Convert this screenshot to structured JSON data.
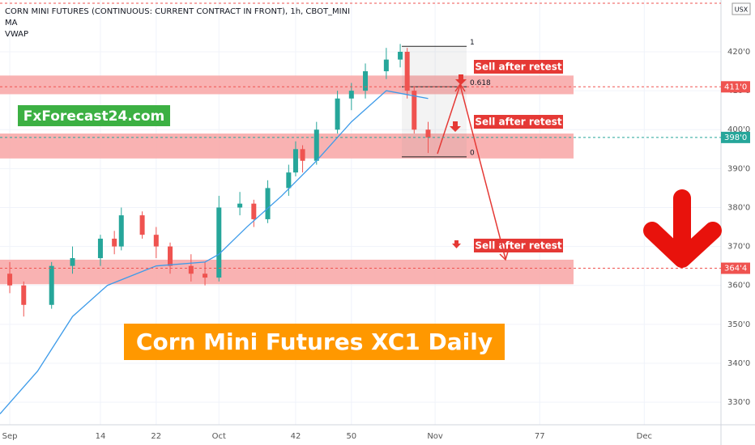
{
  "chart_data": {
    "type": "candlestick",
    "title": "CORN MINI FUTURES (CONTINUOUS: CURRENT CONTRACT IN FRONT), 1h, CBOT_MINI",
    "indicators": [
      "MA",
      "VWAP"
    ],
    "watermark": "FxForecast24.com",
    "headline": "Corn Mini Futures XC1 Daily",
    "currency": "USX",
    "candles": {
      "x": [
        1,
        3,
        7,
        10,
        14,
        16,
        17,
        20,
        22,
        24,
        27,
        29,
        31,
        34,
        36,
        38,
        41,
        42,
        43,
        45,
        48,
        50,
        52,
        55,
        57,
        58,
        59,
        61
      ],
      "open": [
        363,
        360,
        355,
        365,
        367,
        372,
        370,
        378,
        373,
        370,
        365,
        363,
        362,
        380,
        381,
        377,
        385,
        389,
        395,
        392,
        400,
        408,
        410,
        415,
        418,
        420,
        410,
        400
      ],
      "high": [
        366,
        361,
        366,
        370,
        373,
        374,
        380,
        379,
        375,
        371,
        368,
        366,
        383,
        384,
        382,
        387,
        391,
        397,
        396,
        402,
        410,
        412,
        417,
        421,
        422,
        421,
        411,
        402
      ],
      "low": [
        358,
        352,
        354,
        363,
        365,
        368,
        369,
        372,
        367,
        363,
        361,
        360,
        361,
        378,
        375,
        376,
        383,
        388,
        389,
        391,
        399,
        405,
        408,
        413,
        416,
        408,
        399,
        394
      ],
      "close": [
        360,
        355,
        365,
        367,
        372,
        370,
        378,
        373,
        370,
        365,
        363,
        362,
        380,
        381,
        377,
        385,
        389,
        395,
        392,
        400,
        408,
        410,
        415,
        418,
        420,
        410,
        400,
        398
      ]
    },
    "up_color": "#26a69a",
    "down_color": "#ef5350",
    "ma": {
      "name": "MA",
      "color": "#3d9be9",
      "x": [
        -0.4,
        5,
        10,
        15,
        22,
        29,
        31,
        35,
        40,
        45,
        50,
        55,
        58,
        61
      ],
      "values": [
        327,
        338,
        352,
        360,
        365,
        366,
        368,
        375,
        383,
        392,
        402,
        410,
        409,
        408
      ]
    },
    "zones": [
      {
        "low": 409.1,
        "high": 413.9
      },
      {
        "low": 392.6,
        "high": 399.0
      },
      {
        "low": 360.3,
        "high": 366.6
      }
    ],
    "zone_color": "#f8a5a5",
    "fib": {
      "levels": [
        {
          "value": 421.4,
          "label": "1"
        },
        {
          "value": 411,
          "label": "0.618"
        },
        {
          "value": 393,
          "label": "0"
        }
      ]
    },
    "annotations": [
      "Sell after retest",
      "Sell after retest",
      "Sell after retest"
    ],
    "price_tags": [
      {
        "value": 411,
        "label": "411'0",
        "color": "#ef5350"
      },
      {
        "value": 398,
        "label": "398'0",
        "color": "#26a69a"
      },
      {
        "value": 364.4,
        "label": "364'4",
        "color": "#ef5350"
      }
    ],
    "xlim": [
      -0.4,
      103
    ],
    "ylim": [
      324.2,
      433.3
    ],
    "xticks": [
      {
        "value": 1,
        "label": "Sep"
      },
      14,
      22,
      {
        "value": 31,
        "label": "Oct"
      },
      42,
      50,
      {
        "value": 62,
        "label": "Nov"
      },
      77,
      {
        "value": 92,
        "label": "Dec"
      }
    ],
    "yticks": [
      {
        "value": 330,
        "label": "330'0"
      },
      {
        "value": 340,
        "label": "340'0"
      },
      {
        "value": 350,
        "label": "350'0"
      },
      {
        "value": 360,
        "label": "360'0"
      },
      {
        "value": 370,
        "label": "370'0"
      },
      {
        "value": 380,
        "label": "380'0"
      },
      {
        "value": 390,
        "label": "390'0"
      },
      {
        "value": 400,
        "label": "400'0"
      },
      {
        "value": 410,
        "label": "410'0"
      },
      {
        "value": 420,
        "label": "420'0"
      }
    ],
    "grid": true
  }
}
